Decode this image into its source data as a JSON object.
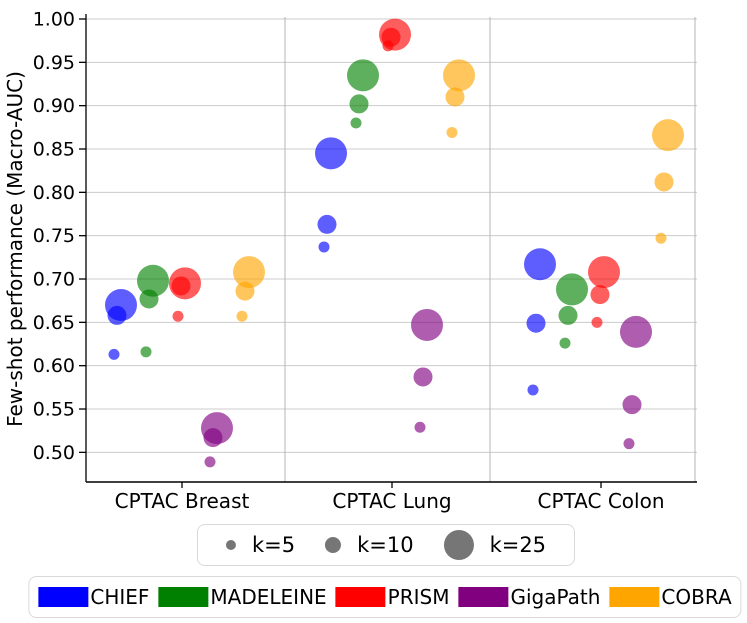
{
  "chart_data": {
    "type": "scatter",
    "title": "",
    "xlabel": "",
    "ylabel": "Few-shot performance (Macro-AUC)",
    "ylim": [
      0.465,
      1.005
    ],
    "yticks": [
      0.5,
      0.55,
      0.6,
      0.65,
      0.7,
      0.75,
      0.8,
      0.85,
      0.9,
      0.95,
      1.0
    ],
    "grid": "horizontal gridlines at each ytick, vertical separators between category panels",
    "legend_position": "below plot: bubble-size legend, then model color legend",
    "categories": [
      "CPTAC Breast",
      "CPTAC Lung",
      "CPTAC Colon"
    ],
    "k_values": [
      5,
      10,
      25
    ],
    "k_labels": [
      "k=5",
      "k=10",
      "k=25"
    ],
    "bubble_alpha": 0.63,
    "size_dot_color": "#767676",
    "series": [
      {
        "name": "CHIEF",
        "color": "#0000ff",
        "values": {
          "CPTAC Breast": [
            0.613,
            0.658,
            0.67
          ],
          "CPTAC Lung": [
            0.737,
            0.763,
            0.845
          ],
          "CPTAC Colon": [
            0.572,
            0.649,
            0.717
          ]
        }
      },
      {
        "name": "MADELEINE",
        "color": "#008000",
        "values": {
          "CPTAC Breast": [
            0.616,
            0.677,
            0.698
          ],
          "CPTAC Lung": [
            0.88,
            0.902,
            0.935
          ],
          "CPTAC Colon": [
            0.626,
            0.658,
            0.688
          ]
        }
      },
      {
        "name": "PRISM",
        "color": "#ff0000",
        "values": {
          "CPTAC Breast": [
            0.657,
            0.692,
            0.695
          ],
          "CPTAC Lung": [
            0.969,
            0.979,
            0.982
          ],
          "CPTAC Colon": [
            0.65,
            0.682,
            0.708
          ]
        }
      },
      {
        "name": "GigaPath",
        "color": "#800080",
        "values": {
          "CPTAC Breast": [
            0.489,
            0.517,
            0.528
          ],
          "CPTAC Lung": [
            0.529,
            0.587,
            0.647
          ],
          "CPTAC Colon": [
            0.51,
            0.555,
            0.639
          ]
        }
      },
      {
        "name": "COBRA",
        "color": "#ffa500",
        "values": {
          "CPTAC Breast": [
            0.657,
            0.686,
            0.708
          ],
          "CPTAC Lung": [
            0.869,
            0.91,
            0.935
          ],
          "CPTAC Colon": [
            0.747,
            0.812,
            0.866
          ]
        }
      }
    ]
  }
}
